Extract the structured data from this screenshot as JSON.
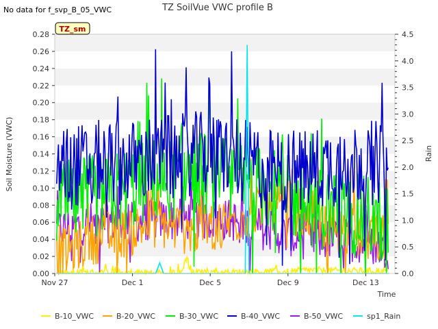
{
  "nodata_note": "No data for f_svp_B_05_VWC",
  "station_badge": "TZ_sm",
  "chart_data": {
    "type": "line",
    "title": "TZ SoilVue VWC profile B",
    "xlabel": "Time",
    "ylabel": "Soil Moisture (VWC)",
    "y2label": "Rain",
    "x_ticks": [
      "Nov 27",
      "Dec 1",
      "Dec 5",
      "Dec 9",
      "Dec 13"
    ],
    "y_ticks": [
      "0.00",
      "0.02",
      "0.04",
      "0.06",
      "0.08",
      "0.10",
      "0.12",
      "0.14",
      "0.16",
      "0.18",
      "0.20",
      "0.22",
      "0.24",
      "0.26",
      "0.28"
    ],
    "y2_ticks": [
      "0.0",
      "0.5",
      "1.0",
      "1.5",
      "2.0",
      "2.5",
      "3.0",
      "3.5",
      "4.0",
      "4.5"
    ],
    "ylim": [
      0,
      0.28
    ],
    "y2lim": [
      0,
      4.5
    ],
    "xlim_days": [
      0,
      17.5
    ],
    "grid": "horizontal bands",
    "legend_position": "bottom",
    "series": [
      {
        "name": "B-10_VWC",
        "color": "#ffee00",
        "axis": "left",
        "keypoints": [
          [
            0,
            0.001
          ],
          [
            6.5,
            0.001
          ],
          [
            6.8,
            0.02
          ],
          [
            7.0,
            0.001
          ],
          [
            12,
            0.002
          ],
          [
            13,
            0.004
          ],
          [
            15,
            0.003
          ],
          [
            17,
            0.003
          ]
        ]
      },
      {
        "name": "B-20_VWC",
        "color": "#ffa500",
        "axis": "left",
        "keypoints": [
          [
            0,
            0.02
          ],
          [
            2,
            0.04
          ],
          [
            4,
            0.05
          ],
          [
            5,
            0.06
          ],
          [
            7,
            0.05
          ],
          [
            9,
            0.06
          ],
          [
            11,
            0.08
          ],
          [
            13,
            0.07
          ],
          [
            15,
            0.05
          ],
          [
            17,
            0.04
          ]
        ]
      },
      {
        "name": "B-30_VWC",
        "color": "#00ee00",
        "axis": "left",
        "keypoints": [
          [
            0,
            0.08
          ],
          [
            2,
            0.09
          ],
          [
            4,
            0.1
          ],
          [
            5,
            0.11
          ],
          [
            6,
            0.11
          ],
          [
            7,
            0.12
          ],
          [
            9,
            0.11
          ],
          [
            11,
            0.1
          ],
          [
            13,
            0.08
          ],
          [
            15,
            0.07
          ],
          [
            17,
            0.06
          ]
        ]
      },
      {
        "name": "B-40_VWC",
        "color": "#0000cc",
        "axis": "left",
        "keypoints": [
          [
            0,
            0.12
          ],
          [
            2,
            0.13
          ],
          [
            4,
            0.13
          ],
          [
            5,
            0.135
          ],
          [
            7,
            0.14
          ],
          [
            9,
            0.14
          ],
          [
            11,
            0.12
          ],
          [
            13,
            0.12
          ],
          [
            15,
            0.13
          ],
          [
            17,
            0.13
          ]
        ]
      },
      {
        "name": "B-50_VWC",
        "color": "#9a1ae6",
        "axis": "left",
        "keypoints": [
          [
            0,
            0.05
          ],
          [
            2,
            0.06
          ],
          [
            4,
            0.06
          ],
          [
            5,
            0.063
          ],
          [
            7,
            0.063
          ],
          [
            9,
            0.063
          ],
          [
            11,
            0.05
          ],
          [
            13,
            0.04
          ],
          [
            15,
            0.04
          ],
          [
            17,
            0.03
          ]
        ]
      },
      {
        "name": "sp1_Rain",
        "color": "#00e5ee",
        "axis": "right",
        "keypoints": [
          [
            0,
            0
          ],
          [
            5.2,
            0
          ],
          [
            5.4,
            0.2
          ],
          [
            5.6,
            0
          ],
          [
            9.8,
            0
          ],
          [
            9.9,
            4.3
          ],
          [
            10.0,
            0
          ],
          [
            17.4,
            0
          ]
        ]
      }
    ]
  }
}
